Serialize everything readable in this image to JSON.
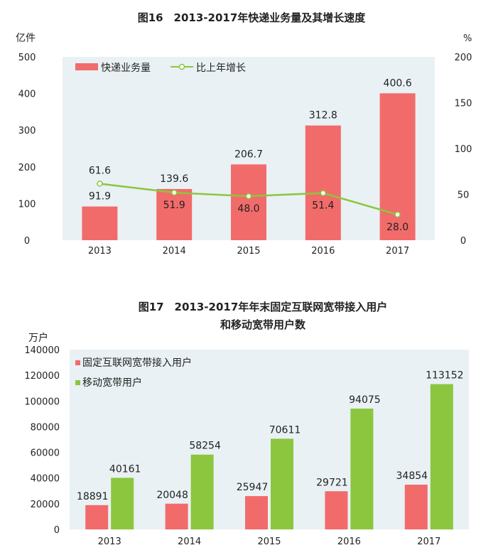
{
  "chart_data": [
    {
      "type": "bar+line",
      "title": "图16　2013-2017年快递业务量及其增长速度",
      "ylabel": "亿件",
      "y2label": "%",
      "categories": [
        "2013",
        "2014",
        "2015",
        "2016",
        "2017"
      ],
      "ylim": [
        0,
        500
      ],
      "y2lim": [
        0,
        200
      ],
      "yticks": [
        "0",
        "100",
        "200",
        "300",
        "400",
        "500"
      ],
      "y2ticks": [
        "0",
        "50",
        "100",
        "150",
        "200"
      ],
      "series": [
        {
          "name": "快递业务量",
          "type": "bar",
          "axis": "left",
          "color": "#f26b6b",
          "values": [
            91.9,
            139.6,
            206.7,
            312.8,
            400.6
          ],
          "labels": [
            "91.9",
            "139.6",
            "206.7",
            "312.8",
            "400.6"
          ]
        },
        {
          "name": "比上年增长",
          "type": "line",
          "axis": "right",
          "color": "#8cc63f",
          "values": [
            61.6,
            51.9,
            48.0,
            51.4,
            28.0
          ],
          "labels": [
            "61.6",
            "51.9",
            "48.0",
            "51.4",
            "28.0"
          ]
        }
      ],
      "legend": "top-left",
      "grid": false,
      "plot_bg": "#e9f1f4"
    },
    {
      "type": "bar",
      "title": "图17　2013-2017年年末固定互联网宽带接入用户",
      "title2": "和移动宽带用户数",
      "ylabel": "万户",
      "categories": [
        "2013",
        "2014",
        "2015",
        "2016",
        "2017"
      ],
      "ylim": [
        0,
        140000
      ],
      "yticks": [
        "0",
        "20000",
        "40000",
        "60000",
        "80000",
        "100000",
        "120000",
        "140000"
      ],
      "series": [
        {
          "name": "固定互联网宽带接入用户",
          "color": "#f26b6b",
          "values": [
            18891,
            20048,
            25947,
            29721,
            34854
          ]
        },
        {
          "name": "移动宽带用户",
          "color": "#8cc63f",
          "values": [
            40161,
            58254,
            70611,
            94075,
            113152
          ]
        }
      ],
      "legend": "top-left",
      "grid": false,
      "plot_bg": "#e9f1f4"
    }
  ]
}
